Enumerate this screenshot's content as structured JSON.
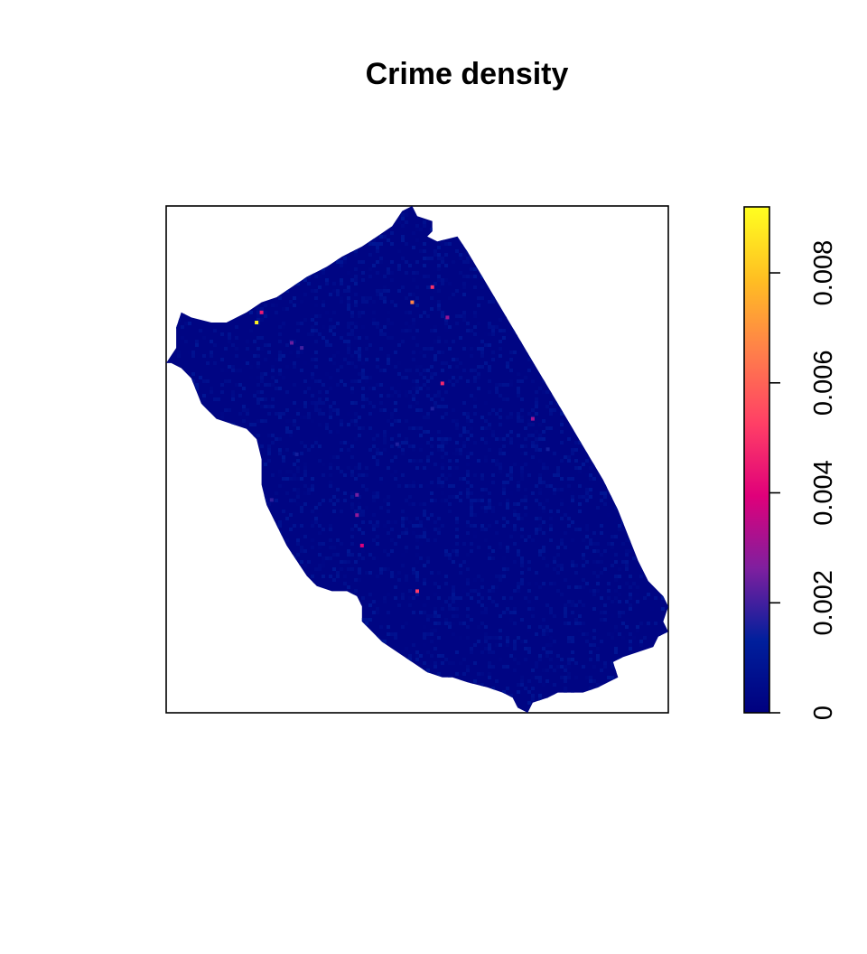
{
  "chart_data": {
    "type": "heatmap",
    "title": "Crime density",
    "xlabel": "",
    "ylabel": "",
    "axes_shown": false,
    "color_scale": {
      "palette": "plasma",
      "colors": [
        "#00007f",
        "#001f9c",
        "#7f1f9f",
        "#e0007a",
        "#ff3f66",
        "#ff7f4a",
        "#ffbf22",
        "#ffff20"
      ],
      "min": 0,
      "max": 0.0092,
      "ticks": [
        {
          "value": 0,
          "label": "0"
        },
        {
          "value": 0.002,
          "label": "0.002"
        },
        {
          "value": 0.004,
          "label": "0.004"
        },
        {
          "value": 0.006,
          "label": "0.006"
        },
        {
          "value": 0.008,
          "label": "0.008"
        }
      ],
      "legend_position": "right"
    },
    "background_density": 0.0002,
    "hotspots": [
      {
        "x": 0.18,
        "y": 0.77,
        "value": 0.0089
      },
      {
        "x": 0.49,
        "y": 0.81,
        "value": 0.0067
      },
      {
        "x": 0.53,
        "y": 0.84,
        "value": 0.005
      },
      {
        "x": 0.19,
        "y": 0.79,
        "value": 0.0045
      },
      {
        "x": 0.55,
        "y": 0.65,
        "value": 0.0048
      },
      {
        "x": 0.5,
        "y": 0.24,
        "value": 0.0052
      },
      {
        "x": 0.39,
        "y": 0.33,
        "value": 0.0039
      },
      {
        "x": 0.38,
        "y": 0.39,
        "value": 0.0029
      },
      {
        "x": 0.56,
        "y": 0.78,
        "value": 0.003
      },
      {
        "x": 0.73,
        "y": 0.58,
        "value": 0.0031
      },
      {
        "x": 0.38,
        "y": 0.43,
        "value": 0.0025
      },
      {
        "x": 0.25,
        "y": 0.73,
        "value": 0.0024
      },
      {
        "x": 0.27,
        "y": 0.72,
        "value": 0.002
      },
      {
        "x": 0.21,
        "y": 0.42,
        "value": 0.0018
      },
      {
        "x": 0.76,
        "y": 0.52,
        "value": 0.0015
      },
      {
        "x": 0.53,
        "y": 0.6,
        "value": 0.0016
      },
      {
        "x": 0.46,
        "y": 0.53,
        "value": 0.0016
      },
      {
        "x": 0.26,
        "y": 0.51,
        "value": 0.0015
      }
    ]
  }
}
